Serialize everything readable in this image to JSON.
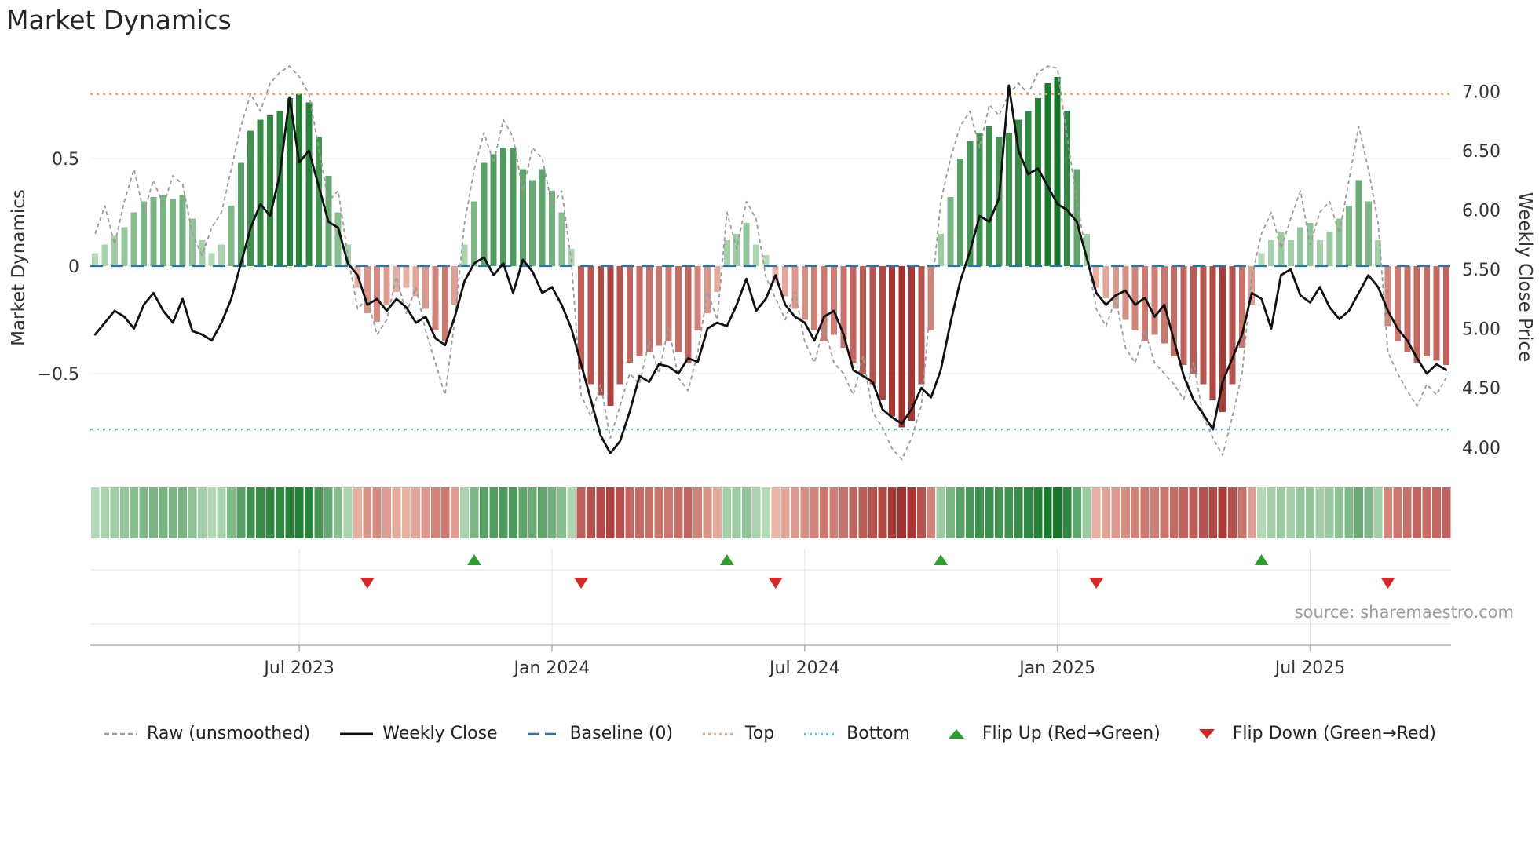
{
  "page": {
    "title": "Market Dynamics",
    "source": "source: sharemaestro.com",
    "background": "#ffffff"
  },
  "axes": {
    "left_label": "Market Dynamics",
    "right_label": "Weekly Close Price",
    "left_ticks": [
      {
        "value": 0.5,
        "label": "0.5"
      },
      {
        "value": 0,
        "label": "0"
      },
      {
        "value": -0.5,
        "label": "−0.5"
      }
    ],
    "right_ticks": [
      {
        "value": 7.0,
        "label": "7.00"
      },
      {
        "value": 6.5,
        "label": "6.50"
      },
      {
        "value": 6.0,
        "label": "6.00"
      },
      {
        "value": 5.5,
        "label": "5.50"
      },
      {
        "value": 5.0,
        "label": "5.00"
      },
      {
        "value": 4.5,
        "label": "4.50"
      },
      {
        "value": 4.0,
        "label": "4.00"
      }
    ],
    "x_ticks": [
      {
        "week": 21,
        "label": "Jul 2023"
      },
      {
        "week": 47,
        "label": "Jan 2024"
      },
      {
        "week": 73,
        "label": "Jul 2024"
      },
      {
        "week": 99,
        "label": "Jan 2025"
      },
      {
        "week": 125,
        "label": "Jul 2025"
      }
    ]
  },
  "chart_data": {
    "type": "bar",
    "title": "Market Dynamics",
    "weeks": 140,
    "left_ylim": [
      -0.953,
      0.956
    ],
    "right_ylim": [
      3.8,
      7.26
    ],
    "baseline": 0,
    "top_line": 0.8,
    "bottom_line": -0.76,
    "series": [
      {
        "name": "Oscillator (bars, left axis)",
        "type": "bar",
        "values": [
          0.06,
          0.1,
          0.14,
          0.18,
          0.25,
          0.3,
          0.32,
          0.33,
          0.31,
          0.33,
          0.22,
          0.12,
          0.06,
          0.1,
          0.28,
          0.48,
          0.63,
          0.68,
          0.7,
          0.72,
          0.78,
          0.8,
          0.76,
          0.6,
          0.42,
          0.25,
          0.1,
          -0.1,
          -0.22,
          -0.26,
          -0.18,
          -0.12,
          -0.1,
          -0.14,
          -0.2,
          -0.3,
          -0.35,
          -0.18,
          0.1,
          0.3,
          0.48,
          0.52,
          0.55,
          0.55,
          0.45,
          0.4,
          0.45,
          0.35,
          0.25,
          0.08,
          -0.48,
          -0.55,
          -0.6,
          -0.65,
          -0.55,
          -0.45,
          -0.42,
          -0.4,
          -0.37,
          -0.35,
          -0.4,
          -0.45,
          -0.3,
          -0.22,
          -0.12,
          0.12,
          0.15,
          0.2,
          0.1,
          0.05,
          -0.08,
          -0.14,
          -0.2,
          -0.25,
          -0.3,
          -0.35,
          -0.32,
          -0.38,
          -0.45,
          -0.5,
          -0.55,
          -0.62,
          -0.7,
          -0.75,
          -0.72,
          -0.55,
          -0.3,
          0.15,
          0.32,
          0.5,
          0.58,
          0.62,
          0.65,
          0.6,
          0.62,
          0.68,
          0.72,
          0.78,
          0.85,
          0.88,
          0.72,
          0.45,
          0.15,
          -0.1,
          -0.15,
          -0.2,
          -0.25,
          -0.3,
          -0.35,
          -0.32,
          -0.36,
          -0.42,
          -0.46,
          -0.5,
          -0.55,
          -0.62,
          -0.68,
          -0.55,
          -0.38,
          -0.18,
          0.06,
          0.12,
          0.16,
          0.12,
          0.18,
          0.2,
          0.12,
          0.16,
          0.22,
          0.28,
          0.4,
          0.3,
          0.12,
          -0.28,
          -0.35,
          -0.4,
          -0.45,
          -0.42,
          -0.44,
          -0.46
        ]
      },
      {
        "name": "Raw (unsmoothed)",
        "type": "line",
        "values": [
          0.15,
          0.28,
          0.1,
          0.3,
          0.45,
          0.25,
          0.4,
          0.28,
          0.42,
          0.38,
          0.15,
          0.05,
          0.18,
          0.25,
          0.45,
          0.65,
          0.8,
          0.72,
          0.85,
          0.9,
          0.93,
          0.88,
          0.8,
          0.55,
          0.3,
          0.35,
          0.05,
          -0.2,
          -0.15,
          -0.32,
          -0.25,
          -0.05,
          -0.22,
          -0.1,
          -0.3,
          -0.45,
          -0.6,
          -0.25,
          0.2,
          0.45,
          0.62,
          0.48,
          0.68,
          0.6,
          0.35,
          0.55,
          0.5,
          0.28,
          0.35,
          0.02,
          -0.6,
          -0.7,
          -0.55,
          -0.8,
          -0.65,
          -0.5,
          -0.55,
          -0.35,
          -0.5,
          -0.28,
          -0.52,
          -0.58,
          -0.4,
          -0.12,
          -0.25,
          0.25,
          0.08,
          0.3,
          0.22,
          -0.05,
          -0.15,
          -0.25,
          -0.12,
          -0.35,
          -0.45,
          -0.28,
          -0.45,
          -0.5,
          -0.6,
          -0.42,
          -0.68,
          -0.75,
          -0.85,
          -0.9,
          -0.8,
          -0.65,
          -0.15,
          0.3,
          0.5,
          0.65,
          0.72,
          0.55,
          0.75,
          0.7,
          0.8,
          0.85,
          0.8,
          0.9,
          0.93,
          0.92,
          0.6,
          0.3,
          0.05,
          -0.2,
          -0.28,
          -0.15,
          -0.38,
          -0.45,
          -0.3,
          -0.45,
          -0.5,
          -0.55,
          -0.62,
          -0.45,
          -0.7,
          -0.8,
          -0.88,
          -0.7,
          -0.5,
          -0.05,
          0.15,
          0.25,
          0.08,
          0.22,
          0.35,
          0.1,
          0.25,
          0.3,
          0.15,
          0.4,
          0.65,
          0.45,
          0.2,
          -0.4,
          -0.5,
          -0.58,
          -0.65,
          -0.55,
          -0.6,
          -0.52
        ]
      },
      {
        "name": "Weekly Close",
        "type": "line",
        "values": [
          4.95,
          5.05,
          5.15,
          5.1,
          5.0,
          5.2,
          5.3,
          5.15,
          5.05,
          5.25,
          4.98,
          4.95,
          4.9,
          5.05,
          5.25,
          5.55,
          5.85,
          6.05,
          5.95,
          6.3,
          6.95,
          6.4,
          6.5,
          6.2,
          5.9,
          5.85,
          5.55,
          5.45,
          5.2,
          5.25,
          5.15,
          5.25,
          5.18,
          5.05,
          5.1,
          4.92,
          4.86,
          5.1,
          5.4,
          5.55,
          5.6,
          5.45,
          5.55,
          5.3,
          5.58,
          5.48,
          5.3,
          5.35,
          5.2,
          5.0,
          4.7,
          4.4,
          4.1,
          3.95,
          4.05,
          4.3,
          4.6,
          4.55,
          4.7,
          4.68,
          4.62,
          4.75,
          4.72,
          5.0,
          5.05,
          5.02,
          5.2,
          5.42,
          5.15,
          5.25,
          5.45,
          5.2,
          5.1,
          5.05,
          4.9,
          5.1,
          5.15,
          4.95,
          4.65,
          4.6,
          4.55,
          4.32,
          4.25,
          4.2,
          4.32,
          4.5,
          4.42,
          4.65,
          5.05,
          5.4,
          5.65,
          5.95,
          5.9,
          6.1,
          7.05,
          6.5,
          6.3,
          6.35,
          6.2,
          6.05,
          6.0,
          5.9,
          5.6,
          5.3,
          5.2,
          5.28,
          5.32,
          5.2,
          5.26,
          5.1,
          5.2,
          4.9,
          4.6,
          4.4,
          4.28,
          4.15,
          4.55,
          4.75,
          4.95,
          5.3,
          5.25,
          5.0,
          5.45,
          5.5,
          5.28,
          5.22,
          5.35,
          5.18,
          5.08,
          5.15,
          5.3,
          5.45,
          5.35,
          5.15,
          5.0,
          4.9,
          4.75,
          4.62,
          4.7,
          4.65
        ]
      }
    ],
    "flip_up_weeks": [
      39,
      65,
      87,
      120
    ],
    "flip_down_weeks": [
      28,
      50,
      70,
      103,
      133
    ]
  },
  "colors": {
    "bar_green_light": "#c8e6c9",
    "bar_green_dark": "#147828",
    "bar_red_light": "#f8d0be",
    "bar_red_dark": "#9b1919",
    "weekly_close": "#111111",
    "raw": "#9a9a9a",
    "baseline": "#1f77b4",
    "top": "#f4a460",
    "bottom": "#40c8e8",
    "flip_up": "#2ca02c",
    "flip_down": "#d62728",
    "grid": "#e3e3e3",
    "axis_line": "#b0b0b0",
    "tick_text": "#333333"
  },
  "legend": [
    {
      "name": "legend-raw",
      "icon": "dashed-line-icon",
      "glyph": "dashed-line",
      "color": "#9a9a9a",
      "label": "Raw (unsmoothed)"
    },
    {
      "name": "legend-weekly-close",
      "icon": "solid-line-icon",
      "glyph": "solid-line",
      "color": "#111111",
      "label": "Weekly Close"
    },
    {
      "name": "legend-baseline",
      "icon": "long-dash-line-icon",
      "glyph": "long-dash-line",
      "color": "#1f77b4",
      "label": "Baseline (0)"
    },
    {
      "name": "legend-top",
      "icon": "dotted-line-icon",
      "glyph": "dotted-line",
      "color": "#f4a460",
      "label": "Top"
    },
    {
      "name": "legend-bottom",
      "icon": "dotted-line-icon",
      "glyph": "dotted-line",
      "color": "#40c8e8",
      "label": "Bottom"
    },
    {
      "name": "legend-flip-up",
      "icon": "triangle-up-icon",
      "glyph": "triangle-up",
      "color": "#2ca02c",
      "label": "Flip Up (Red→Green)"
    },
    {
      "name": "legend-flip-down",
      "icon": "triangle-down-icon",
      "glyph": "triangle-down",
      "color": "#d62728",
      "label": "Flip Down (Green→Red)"
    }
  ]
}
